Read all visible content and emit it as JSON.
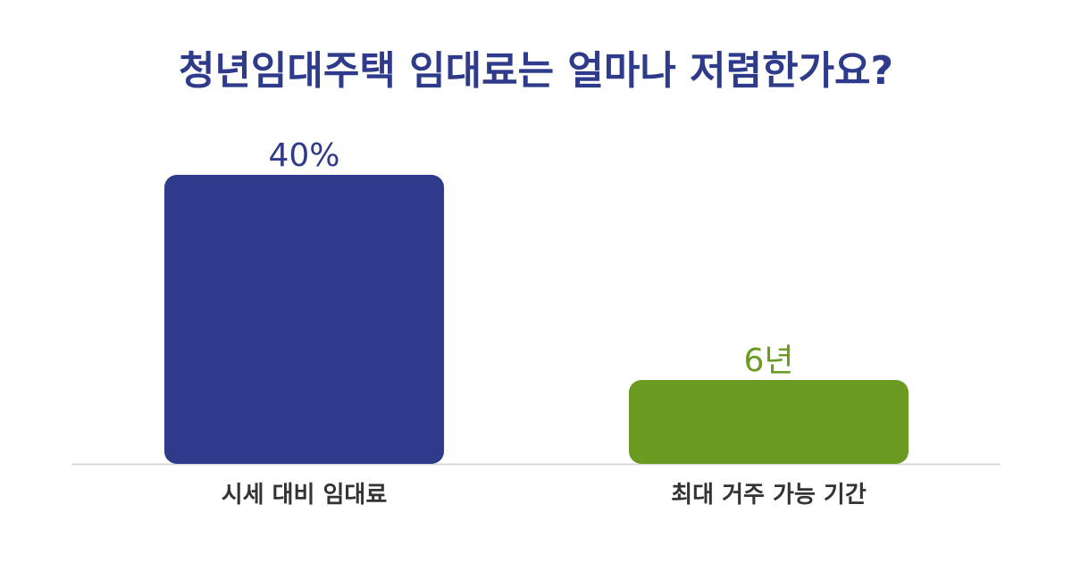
{
  "colors": {
    "title": "#2e3a8a",
    "axis_label": "#333333",
    "baseline": "#d8d8d8"
  },
  "chart_data": {
    "type": "bar",
    "title": "청년임대주택 임대료는 얼마나 저렴한가요?",
    "categories": [
      "시세 대비 임대료",
      "최대 거주 가능 기간"
    ],
    "bars": [
      {
        "category": "시세 대비 임대료",
        "value": 40,
        "label": "40%",
        "color": "#2e3a8a"
      },
      {
        "category": "최대 거주 가능 기간",
        "value": 6,
        "label": "6년",
        "color": "#6a9a1f"
      }
    ],
    "grid": false,
    "legend": "none"
  }
}
